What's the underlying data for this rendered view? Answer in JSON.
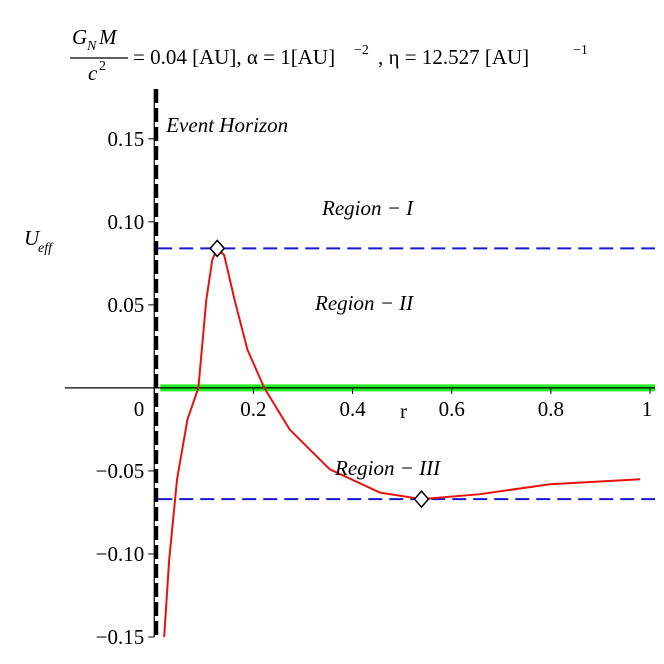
{
  "chart_data": {
    "type": "line",
    "title_parts": [
      "G",
      "N",
      "M",
      "c",
      "2",
      "= 0.04 [AU], α = 1[AU]",
      "−2",
      ", η = 12.527 [AU]",
      "−1"
    ],
    "x_label": "r",
    "y_label": [
      "U",
      "eff"
    ],
    "xlim": [
      -0.18,
      1.01
    ],
    "ylim": [
      -0.15,
      0.18
    ],
    "xticks": [
      0,
      0.2,
      0.4,
      0.6,
      0.8,
      1
    ],
    "yticks": [
      {
        "value": -0.15,
        "label": "−0.15"
      },
      {
        "value": -0.1,
        "label": "−0.10"
      },
      {
        "value": -0.05,
        "label": "−0.05"
      },
      0.05,
      {
        "value": 0.1,
        "label": "0.10"
      },
      0.15
    ],
    "series": [
      {
        "color": "#e8120c",
        "x": [
          0.02,
          0.03,
          0.046,
          0.067,
          0.089,
          0.105,
          0.117,
          0.127,
          0.141,
          0.162,
          0.188,
          0.222,
          0.273,
          0.354,
          0.455,
          0.539,
          0.657,
          0.798,
          0.98
        ],
        "values": [
          -0.15,
          -0.104,
          -0.055,
          -0.019,
          0,
          0.053,
          0.077,
          0.084,
          0.08,
          0.053,
          0.023,
          0,
          -0.025,
          -0.049,
          -0.063,
          -0.067,
          -0.064,
          -0.058,
          -0.055
        ]
      }
    ],
    "reference_lines": [
      {
        "y": 0.084,
        "color": "#1a1acc",
        "style": "dashed"
      },
      {
        "y": -0.067,
        "color": "#1a1acc",
        "style": "dashed"
      },
      {
        "y": 0,
        "color": "#22ee22",
        "style": "solid"
      }
    ],
    "event_horizon": {
      "x": 0.004,
      "label": "Event Horizon"
    },
    "markers": {
      "x": [
        0.127,
        0.539
      ],
      "y": [
        0.084,
        -0.067
      ]
    },
    "annotations": [
      "Region − I",
      "Region − II",
      "Region − III"
    ]
  }
}
